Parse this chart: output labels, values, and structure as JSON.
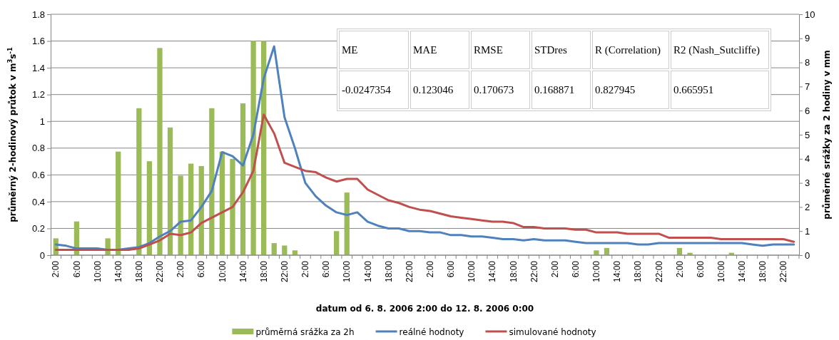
{
  "chart_data": {
    "type": "line",
    "xlabel": "datum od 6. 8. 2006 2:00 do 12. 8. 2006 0:00",
    "ylabel": "průměrný 2-hodinový průtok v m$^{3}$s$^{-1}$",
    "y2label": "průměrné srážky za 2 hodiny v mm",
    "categories": [
      "2:00",
      null,
      "6:00",
      null,
      "10:00",
      null,
      "14:00",
      null,
      "18:00",
      null,
      "22:00",
      null,
      "2:00",
      null,
      "6:00",
      null,
      "10:00",
      null,
      "14:00",
      null,
      "18:00",
      null,
      "22:00",
      null,
      "2:00",
      null,
      "6:00",
      null,
      "10:00",
      null,
      "14:00",
      null,
      "18:00",
      null,
      "22:00",
      null,
      "2:00",
      null,
      "6:00",
      null,
      "10:00",
      null,
      "14:00",
      null,
      "18:00",
      null,
      "22:00",
      null,
      "2:00",
      null,
      "6:00",
      null,
      "10:00",
      null,
      "14:00",
      null,
      "18:00",
      null,
      "22:00",
      null,
      "2:00",
      null,
      "6:00",
      null,
      "10:00",
      null,
      "14:00",
      null,
      "18:00",
      null,
      "22:00",
      null
    ],
    "ylim": [
      0,
      1.8
    ],
    "yticks": [
      0,
      0.2,
      0.4,
      0.6,
      0.8,
      1,
      1.2,
      1.4,
      1.6,
      1.8
    ],
    "y2lim": [
      0,
      10
    ],
    "y2ticks": [
      0,
      1,
      2,
      3,
      4,
      5,
      6,
      7,
      8,
      9,
      10
    ],
    "grid": "y",
    "legend": "bottom",
    "series": [
      {
        "name": "průměrná srážka za 2h",
        "type": "bar",
        "axis": "y2",
        "color": "#9bbb59",
        "values": [
          0.7,
          null,
          1.4,
          null,
          null,
          0.7,
          4.3,
          null,
          6.1,
          3.9,
          8.6,
          5.3,
          3.3,
          3.8,
          3.7,
          6.1,
          4.3,
          4.0,
          6.3,
          8.9,
          8.9,
          0.5,
          0.4,
          0.2,
          null,
          null,
          null,
          1.0,
          2.6,
          null,
          null,
          null,
          null,
          null,
          null,
          null,
          null,
          null,
          null,
          null,
          null,
          null,
          null,
          null,
          null,
          null,
          null,
          null,
          null,
          null,
          null,
          null,
          0.2,
          0.3,
          null,
          null,
          null,
          null,
          null,
          null,
          0.3,
          0.1,
          null,
          null,
          null,
          0.1,
          null,
          null,
          null,
          null,
          null,
          null
        ]
      },
      {
        "name": "reálné hodnoty",
        "color": "#4f81bd",
        "values": [
          0.08,
          0.07,
          0.05,
          0.05,
          0.05,
          0.04,
          0.04,
          0.05,
          0.06,
          0.09,
          0.14,
          0.18,
          0.25,
          0.26,
          0.36,
          0.48,
          0.77,
          0.74,
          0.67,
          0.9,
          1.32,
          1.56,
          1.03,
          0.8,
          0.54,
          0.44,
          0.37,
          0.32,
          0.3,
          0.32,
          0.25,
          0.22,
          0.2,
          0.2,
          0.18,
          0.18,
          0.17,
          0.17,
          0.15,
          0.15,
          0.14,
          0.14,
          0.13,
          0.12,
          0.12,
          0.11,
          0.12,
          0.11,
          0.11,
          0.11,
          0.1,
          0.09,
          0.09,
          0.09,
          0.09,
          0.09,
          0.08,
          0.08,
          0.09,
          0.09,
          0.09,
          0.09,
          0.09,
          0.09,
          0.09,
          0.09,
          0.09,
          0.08,
          0.07,
          0.08,
          0.08,
          0.08
        ]
      },
      {
        "name": "simulované hodnoty",
        "color": "#c0504d",
        "values": [
          0.04,
          0.04,
          0.04,
          0.04,
          0.04,
          0.04,
          0.04,
          0.04,
          0.05,
          0.08,
          0.11,
          0.16,
          0.15,
          0.17,
          0.24,
          0.28,
          0.32,
          0.36,
          0.47,
          0.63,
          1.05,
          0.91,
          0.69,
          0.66,
          0.63,
          0.62,
          0.58,
          0.55,
          0.57,
          0.57,
          0.49,
          0.45,
          0.41,
          0.39,
          0.36,
          0.34,
          0.33,
          0.31,
          0.29,
          0.28,
          0.27,
          0.26,
          0.25,
          0.25,
          0.24,
          0.21,
          0.21,
          0.2,
          0.2,
          0.2,
          0.19,
          0.19,
          0.17,
          0.17,
          0.17,
          0.16,
          0.16,
          0.16,
          0.16,
          0.13,
          0.13,
          0.13,
          0.13,
          0.13,
          0.12,
          0.12,
          0.12,
          0.12,
          0.12,
          0.12,
          0.12,
          0.1
        ]
      }
    ],
    "annotations": [
      "ME",
      "MAE",
      "RMSE",
      "STDres",
      "R (Correlation)",
      "R2 (Nash_Sutcliffe)",
      "-0.0247354",
      "0.123046",
      "0.170673",
      "0.168871",
      "0.827945",
      "0.665951"
    ]
  }
}
